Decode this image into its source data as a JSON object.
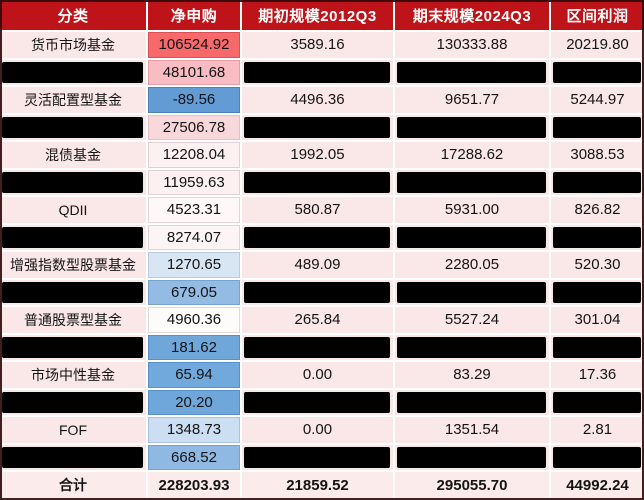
{
  "table": {
    "columns": [
      "分类",
      "净申购",
      "期初规模2012Q3",
      "期末规模2024Q3",
      "区间利润"
    ],
    "rows": [
      {
        "category": "货币市场基金",
        "net": "106524.92",
        "begin": "3589.16",
        "end": "130333.88",
        "profit": "20219.80",
        "redacted": false,
        "total": false,
        "net_bg": "#F8696B",
        "net_border": "#D94F52"
      },
      {
        "net": "48101.68",
        "redacted": true,
        "total": false,
        "net_bg": "#F8BCC2",
        "net_border": "#E8A0A8"
      },
      {
        "category": "灵活配置型基金",
        "net": "-89.56",
        "begin": "4496.36",
        "end": "9651.77",
        "profit": "5244.97",
        "redacted": false,
        "total": false,
        "net_bg": "#639BD5",
        "net_border": "#4A82BC"
      },
      {
        "net": "27506.78",
        "redacted": true,
        "total": false,
        "net_bg": "#F9D8DC",
        "net_border": "#E9BFC5"
      },
      {
        "category": "混债基金",
        "net": "12208.04",
        "begin": "1992.05",
        "end": "17288.62",
        "profit": "3088.53",
        "redacted": false,
        "total": false,
        "net_bg": "#FCF0F1",
        "net_border": "#E0D0D2"
      },
      {
        "net": "11959.63",
        "redacted": true,
        "total": false,
        "net_bg": "#FCF0F1",
        "net_border": "#E0D0D2"
      },
      {
        "category": "QDII",
        "net": "4523.31",
        "begin": "580.87",
        "end": "5931.00",
        "profit": "826.82",
        "redacted": false,
        "total": false,
        "net_bg": "#FEF8F8",
        "net_border": "#E3D6D6"
      },
      {
        "net": "8274.07",
        "redacted": true,
        "total": false,
        "net_bg": "#FDF4F5",
        "net_border": "#E1D3D4"
      },
      {
        "category": "增强指数型股票基金",
        "net": "1270.65",
        "begin": "489.09",
        "end": "2280.05",
        "profit": "520.30",
        "redacted": false,
        "total": false,
        "net_bg": "#D8E5F3",
        "net_border": "#B9CCE0"
      },
      {
        "net": "679.05",
        "redacted": true,
        "total": false,
        "net_bg": "#93BBE3",
        "net_border": "#76A3D0"
      },
      {
        "category": "普通股票型基金",
        "net": "4960.36",
        "begin": "265.84",
        "end": "5527.24",
        "profit": "301.04",
        "redacted": false,
        "total": false,
        "net_bg": "#FEFBFB",
        "net_border": "#E3D8D8"
      },
      {
        "net": "181.62",
        "redacted": true,
        "total": false,
        "net_bg": "#6FA7DB",
        "net_border": "#5690C6"
      },
      {
        "category": "市场中性基金",
        "net": "65.94",
        "begin": "0.00",
        "end": "83.29",
        "profit": "17.36",
        "redacted": false,
        "total": false,
        "net_bg": "#72A9DC",
        "net_border": "#5690C6"
      },
      {
        "net": "20.20",
        "redacted": true,
        "total": false,
        "net_bg": "#6FA7DB",
        "net_border": "#5690C6"
      },
      {
        "category": "FOF",
        "net": "1348.73",
        "begin": "0.00",
        "end": "1351.54",
        "profit": "2.81",
        "redacted": false,
        "total": false,
        "net_bg": "#CCDEF1",
        "net_border": "#A9C3DC"
      },
      {
        "net": "668.52",
        "redacted": true,
        "total": false,
        "net_bg": "#8FB8E2",
        "net_border": "#76A3D0"
      },
      {
        "category": "合计",
        "net": "228203.93",
        "begin": "21859.52",
        "end": "295055.70",
        "profit": "44992.24",
        "redacted": false,
        "total": true,
        "net_bg": "#FBEBEA",
        "net_border": "#FFFFFF"
      }
    ],
    "colors": {
      "header_bg": "#BE1318",
      "header_text": "#FFFFFF",
      "row_bg": "#FAE7E8",
      "grid": "#FFFFFF",
      "redaction_bar": "#000000",
      "text": "#141414",
      "heatmap_high": "#F8696B",
      "heatmap_low": "#639BD5"
    }
  },
  "chart_data": {
    "type": "table",
    "title": "",
    "columns": [
      "分类",
      "净申购",
      "期初规模2012Q3",
      "期末规模2024Q3",
      "区间利润"
    ],
    "rows": [
      [
        "货币市场基金",
        106524.92,
        3589.16,
        130333.88,
        20219.8
      ],
      [
        null,
        48101.68,
        null,
        null,
        null
      ],
      [
        "灵活配置型基金",
        -89.56,
        4496.36,
        9651.77,
        5244.97
      ],
      [
        null,
        27506.78,
        null,
        null,
        null
      ],
      [
        "混债基金",
        12208.04,
        1992.05,
        17288.62,
        3088.53
      ],
      [
        null,
        11959.63,
        null,
        null,
        null
      ],
      [
        "QDII",
        4523.31,
        580.87,
        5931.0,
        826.82
      ],
      [
        null,
        8274.07,
        null,
        null,
        null
      ],
      [
        "增强指数型股票基金",
        1270.65,
        489.09,
        2280.05,
        520.3
      ],
      [
        null,
        679.05,
        null,
        null,
        null
      ],
      [
        "普通股票型基金",
        4960.36,
        265.84,
        5527.24,
        301.04
      ],
      [
        null,
        181.62,
        null,
        null,
        null
      ],
      [
        "市场中性基金",
        65.94,
        0.0,
        83.29,
        17.36
      ],
      [
        null,
        20.2,
        null,
        null,
        null
      ],
      [
        "FOF",
        1348.73,
        0.0,
        1351.54,
        2.81
      ],
      [
        null,
        668.52,
        null,
        null,
        null
      ],
      [
        "合计",
        228203.93,
        21859.52,
        295055.7,
        44992.24
      ]
    ],
    "notes": "null cells are covered by black redaction bars in the image; 净申购 column uses a red-white-blue conditional-formatting color scale"
  }
}
